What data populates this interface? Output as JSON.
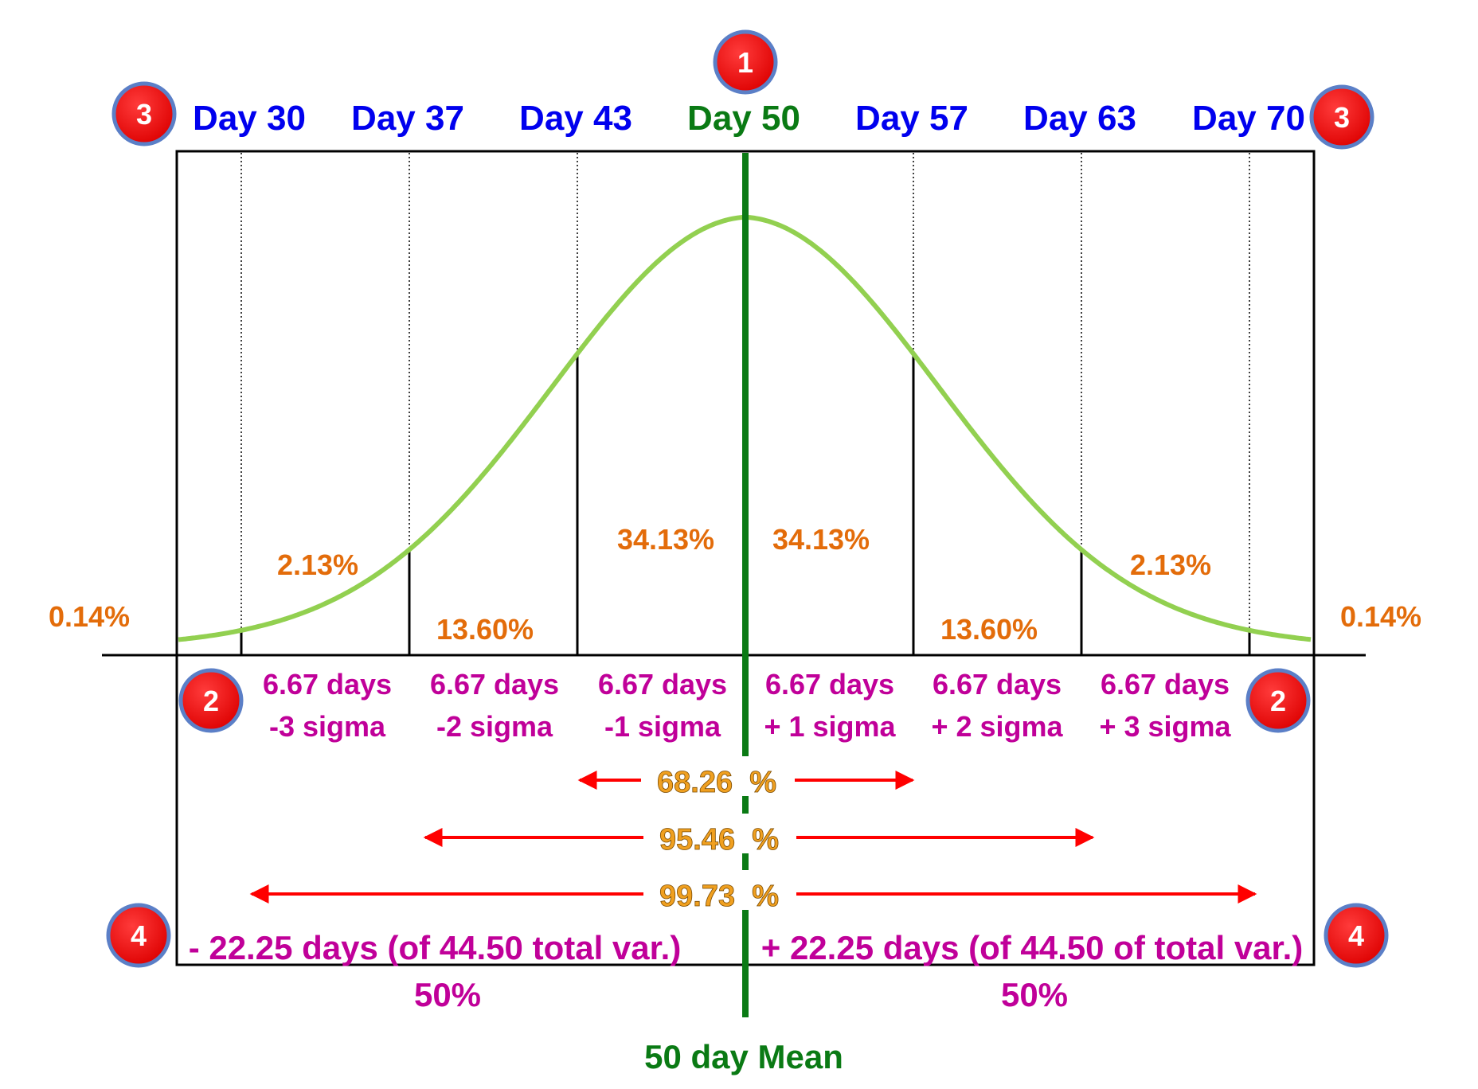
{
  "colors": {
    "day": "#0000ee",
    "mean": "#006600",
    "percent": "#e36c0a",
    "sigma": "#c00099",
    "arrow": "#ff0000",
    "curve": "#92d050",
    "badge_fill": "#ee1111",
    "badge_ring": "#5b7fc7",
    "frame": "#000000"
  },
  "days": [
    {
      "label": "Day 30",
      "value": 30
    },
    {
      "label": "Day 37",
      "value": 37
    },
    {
      "label": "Day 43",
      "value": 43
    },
    {
      "label": "Day 50",
      "value": 50
    },
    {
      "label": "Day 57",
      "value": 57
    },
    {
      "label": "Day 63",
      "value": 63
    },
    {
      "label": "Day 70",
      "value": 70
    }
  ],
  "segment_percents": [
    {
      "id": "tail-left",
      "text": "0.14%"
    },
    {
      "id": "s3-left",
      "text": "2.13%"
    },
    {
      "id": "s2-left",
      "text": "13.60%"
    },
    {
      "id": "s1-left",
      "text": "34.13%"
    },
    {
      "id": "s1-right",
      "text": "34.13%"
    },
    {
      "id": "s2-right",
      "text": "13.60%"
    },
    {
      "id": "s3-right",
      "text": "2.13%"
    },
    {
      "id": "tail-right",
      "text": "0.14%"
    }
  ],
  "sigma_bands": [
    {
      "days": "6.67 days",
      "sigma": "-3 sigma"
    },
    {
      "days": "6.67 days",
      "sigma": "-2 sigma"
    },
    {
      "days": "6.67 days",
      "sigma": "-1 sigma"
    },
    {
      "days": "6.67 days",
      "sigma": "+ 1 sigma"
    },
    {
      "days": "6.67 days",
      "sigma": "+ 2 sigma"
    },
    {
      "days": "6.67 days",
      "sigma": "+ 3 sigma"
    }
  ],
  "ranges": [
    {
      "label": "68.26  %",
      "sigma": 1
    },
    {
      "label": "95.46  %",
      "sigma": 2
    },
    {
      "label": "99.73  %",
      "sigma": 3
    }
  ],
  "variance": {
    "left": "- 22.25 days (of 44.50 total var.)",
    "right": "+ 22.25 days (of 44.50 of total var.)"
  },
  "halves": {
    "left": "50%",
    "right": "50%"
  },
  "mean_label": "50 day Mean",
  "badges": {
    "mean": "1",
    "sigma_left": "2",
    "sigma_right": "2",
    "range_left": "3",
    "range_right": "3",
    "var_left": "4",
    "var_right": "4"
  }
}
